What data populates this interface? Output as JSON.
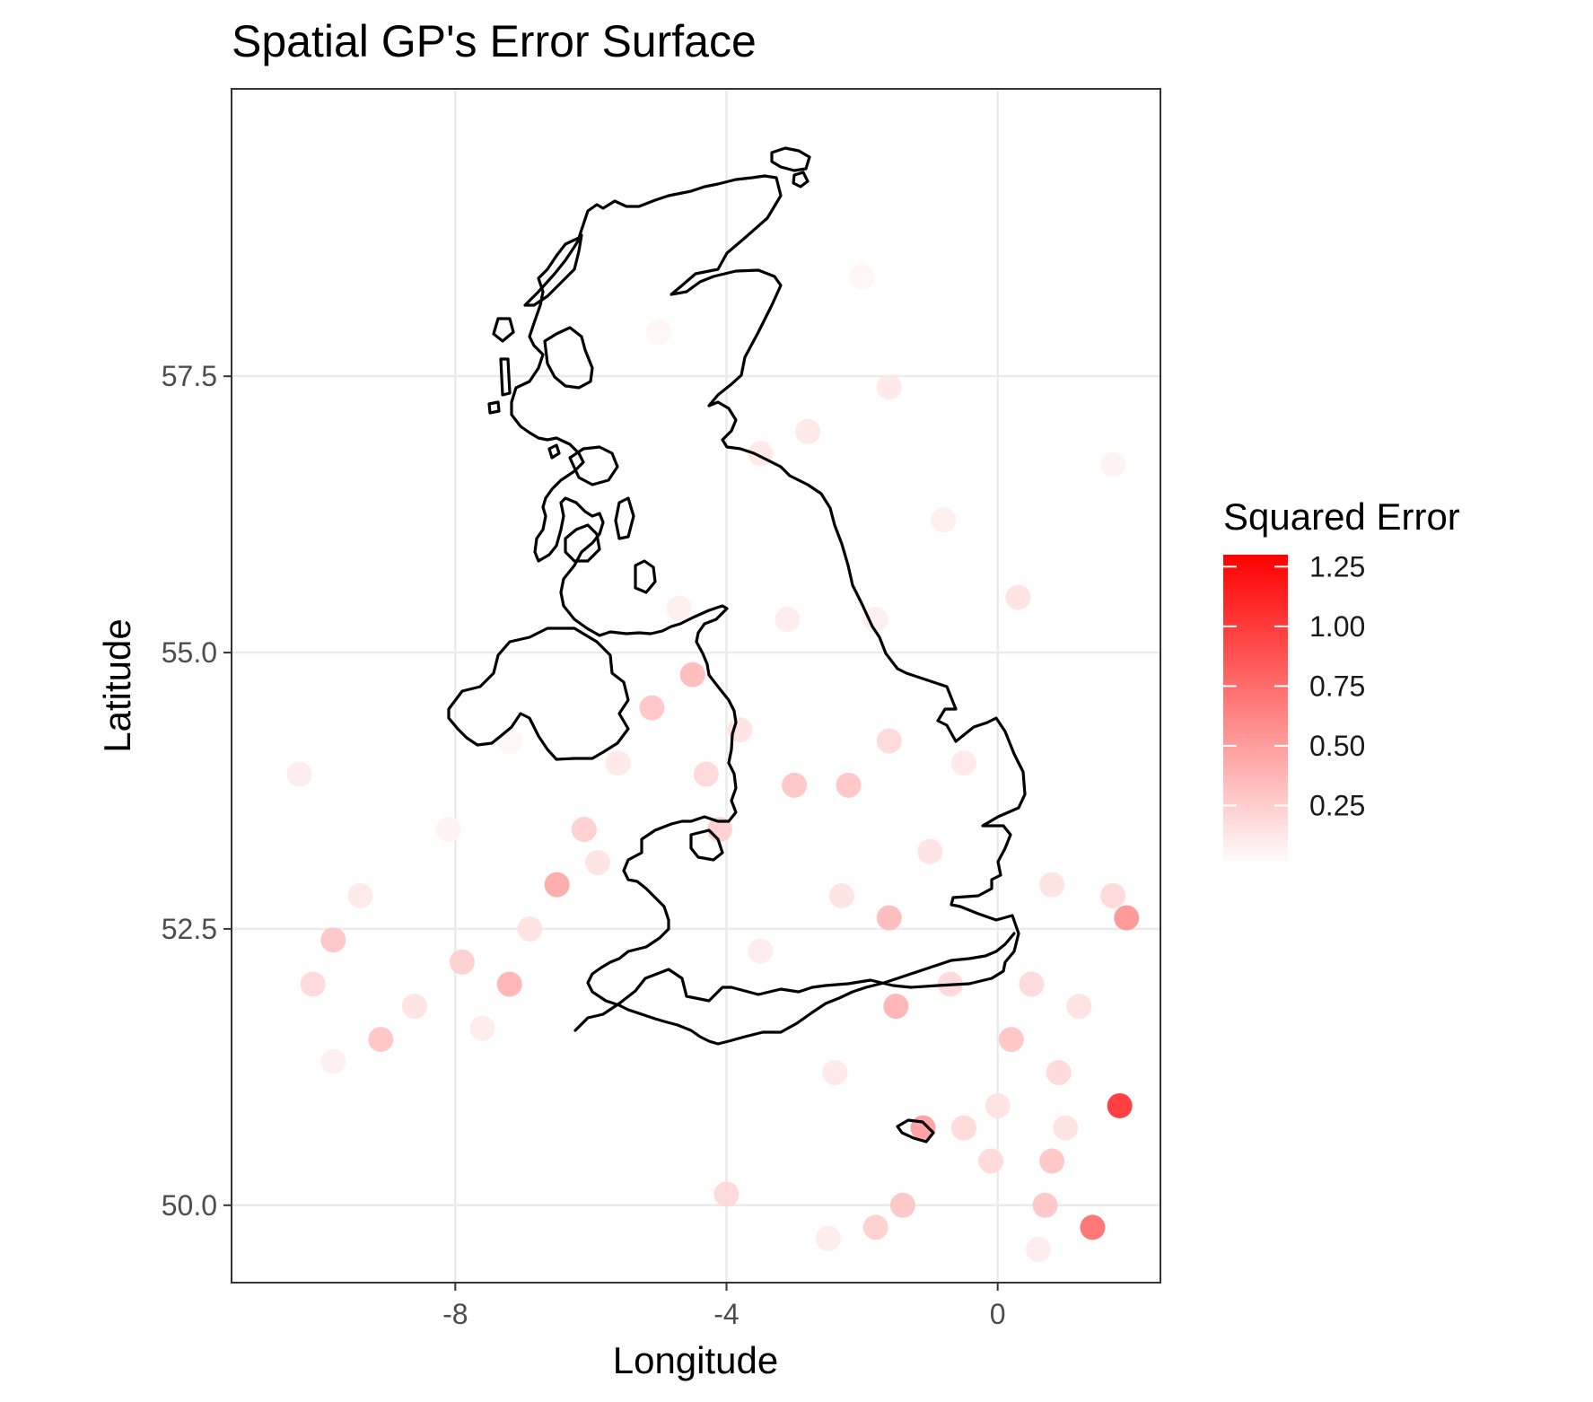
{
  "chart_data": {
    "type": "scatter",
    "title": "Spatial GP's Error Surface",
    "xlabel": "Longitude",
    "ylabel": "Latitude",
    "xlim": [
      -11.3,
      2.4
    ],
    "ylim": [
      49.3,
      60.1
    ],
    "x_ticks": [
      -8,
      -4,
      0
    ],
    "x_tick_labels": [
      "-8",
      "-4",
      "0"
    ],
    "y_ticks": [
      50.0,
      52.5,
      55.0,
      57.5
    ],
    "y_tick_labels": [
      "50.0",
      "52.5",
      "55.0",
      "57.5"
    ],
    "grid": true,
    "color_scale": {
      "title": "Squared Error",
      "low": "#ffffff",
      "high": "#ff0000",
      "domain": [
        0,
        1.3
      ],
      "ticks": [
        1.25,
        1.0,
        0.75,
        0.5,
        0.25
      ],
      "tick_labels": [
        "1.25",
        "1.00",
        "0.75",
        "0.50",
        "0.25"
      ]
    },
    "points": [
      {
        "lon": 1.8,
        "lat": 50.9,
        "err": 1.05
      },
      {
        "lon": 1.4,
        "lat": 49.8,
        "err": 0.75
      },
      {
        "lon": 1.9,
        "lat": 52.6,
        "err": 0.55
      },
      {
        "lon": 1.7,
        "lat": 52.8,
        "err": 0.2
      },
      {
        "lon": -1.1,
        "lat": 50.7,
        "err": 0.5
      },
      {
        "lon": -1.5,
        "lat": 51.8,
        "err": 0.4
      },
      {
        "lon": -1.6,
        "lat": 52.6,
        "err": 0.35
      },
      {
        "lon": -6.5,
        "lat": 52.9,
        "err": 0.45
      },
      {
        "lon": -7.2,
        "lat": 52.0,
        "err": 0.4
      },
      {
        "lon": -9.8,
        "lat": 52.4,
        "err": 0.3
      },
      {
        "lon": -9.1,
        "lat": 51.5,
        "err": 0.3
      },
      {
        "lon": -4.5,
        "lat": 54.8,
        "err": 0.35
      },
      {
        "lon": -1.4,
        "lat": 50.0,
        "err": 0.3
      },
      {
        "lon": 0.7,
        "lat": 50.0,
        "err": 0.3
      },
      {
        "lon": 0.8,
        "lat": 50.4,
        "err": 0.3
      },
      {
        "lon": -0.1,
        "lat": 50.4,
        "err": 0.2
      },
      {
        "lon": -3.0,
        "lat": 53.8,
        "err": 0.3
      },
      {
        "lon": -4.0,
        "lat": 50.1,
        "err": 0.2
      },
      {
        "lon": 0.3,
        "lat": 55.5,
        "err": 0.15
      },
      {
        "lon": -5.1,
        "lat": 54.5,
        "err": 0.3
      },
      {
        "lon": -6.1,
        "lat": 53.4,
        "err": 0.25
      },
      {
        "lon": -4.1,
        "lat": 53.4,
        "err": 0.25
      },
      {
        "lon": -0.7,
        "lat": 52.0,
        "err": 0.2
      },
      {
        "lon": 0.2,
        "lat": 51.5,
        "err": 0.3
      },
      {
        "lon": -1.8,
        "lat": 49.8,
        "err": 0.25
      },
      {
        "lon": -10.1,
        "lat": 52.0,
        "err": 0.2
      },
      {
        "lon": -7.9,
        "lat": 52.2,
        "err": 0.25
      },
      {
        "lon": -2.2,
        "lat": 53.8,
        "err": 0.3
      },
      {
        "lon": -1.6,
        "lat": 54.2,
        "err": 0.2
      },
      {
        "lon": 0.5,
        "lat": 52.0,
        "err": 0.2
      },
      {
        "lon": 0.9,
        "lat": 51.2,
        "err": 0.2
      },
      {
        "lon": -8.6,
        "lat": 51.8,
        "err": 0.15
      },
      {
        "lon": -3.8,
        "lat": 54.3,
        "err": 0.15
      },
      {
        "lon": -2.8,
        "lat": 57.0,
        "err": 0.12
      },
      {
        "lon": -3.5,
        "lat": 56.8,
        "err": 0.12
      },
      {
        "lon": -1.6,
        "lat": 57.4,
        "err": 0.12
      },
      {
        "lon": -0.5,
        "lat": 54.0,
        "err": 0.12
      },
      {
        "lon": 0.8,
        "lat": 52.9,
        "err": 0.15
      },
      {
        "lon": 1.2,
        "lat": 51.8,
        "err": 0.15
      },
      {
        "lon": -2.4,
        "lat": 51.2,
        "err": 0.12
      },
      {
        "lon": -3.5,
        "lat": 52.3,
        "err": 0.1
      },
      {
        "lon": -6.9,
        "lat": 52.5,
        "err": 0.15
      },
      {
        "lon": -5.9,
        "lat": 53.1,
        "err": 0.15
      },
      {
        "lon": -9.4,
        "lat": 52.8,
        "err": 0.12
      },
      {
        "lon": -10.3,
        "lat": 53.9,
        "err": 0.1
      },
      {
        "lon": -7.6,
        "lat": 51.6,
        "err": 0.1
      },
      {
        "lon": 0.0,
        "lat": 50.9,
        "err": 0.15
      },
      {
        "lon": -0.5,
        "lat": 50.7,
        "err": 0.2
      },
      {
        "lon": 1.0,
        "lat": 50.7,
        "err": 0.15
      },
      {
        "lon": 0.6,
        "lat": 49.6,
        "err": 0.1
      },
      {
        "lon": -2.5,
        "lat": 49.7,
        "err": 0.1
      },
      {
        "lon": -5.6,
        "lat": 54.0,
        "err": 0.12
      },
      {
        "lon": -3.1,
        "lat": 55.3,
        "err": 0.1
      },
      {
        "lon": -1.8,
        "lat": 55.3,
        "err": 0.08
      },
      {
        "lon": -0.8,
        "lat": 56.2,
        "err": 0.08
      },
      {
        "lon": 1.7,
        "lat": 56.7,
        "err": 0.06
      },
      {
        "lon": -4.7,
        "lat": 55.4,
        "err": 0.08
      },
      {
        "lon": -2.3,
        "lat": 52.8,
        "err": 0.15
      },
      {
        "lon": -1.0,
        "lat": 53.2,
        "err": 0.15
      },
      {
        "lon": -4.3,
        "lat": 53.9,
        "err": 0.2
      },
      {
        "lon": -9.8,
        "lat": 51.3,
        "err": 0.08
      },
      {
        "lon": -8.1,
        "lat": 53.4,
        "err": 0.06
      },
      {
        "lon": -7.2,
        "lat": 54.2,
        "err": 0.05
      },
      {
        "lon": -2.0,
        "lat": 58.4,
        "err": 0.05
      },
      {
        "lon": -5.0,
        "lat": 57.9,
        "err": 0.05
      }
    ]
  }
}
